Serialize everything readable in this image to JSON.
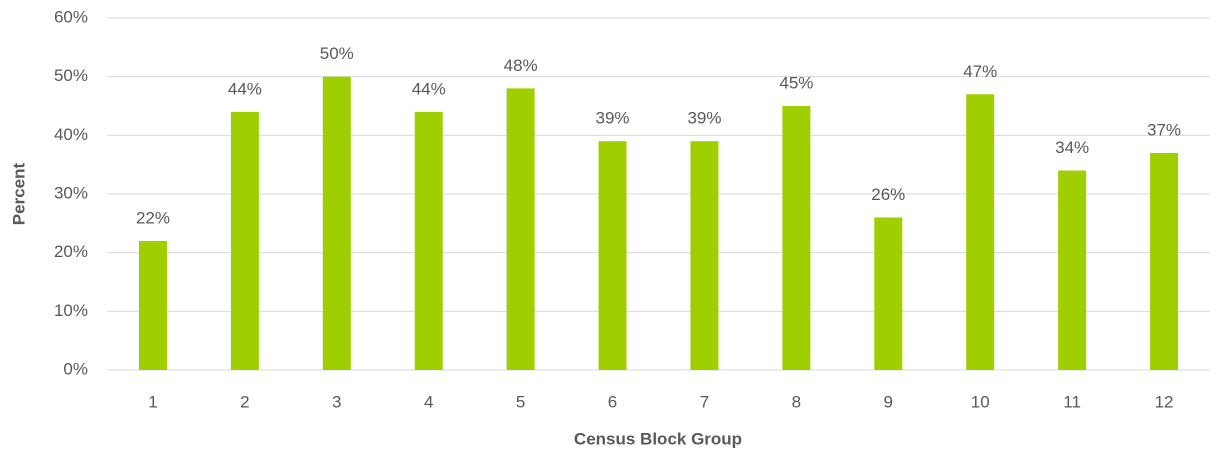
{
  "chart_data": {
    "type": "bar",
    "x_label": "Census Block Group",
    "y_label": "Percent",
    "categories": [
      "1",
      "2",
      "3",
      "4",
      "5",
      "6",
      "7",
      "8",
      "9",
      "10",
      "11",
      "12"
    ],
    "values": [
      22,
      44,
      50,
      44,
      48,
      39,
      39,
      45,
      26,
      47,
      34,
      37
    ],
    "value_labels": [
      "22%",
      "44%",
      "50%",
      "44%",
      "48%",
      "39%",
      "39%",
      "45%",
      "26%",
      "47%",
      "34%",
      "37%"
    ],
    "color": "#9fcf00",
    "ylim": [
      0,
      60
    ],
    "yticks": [
      {
        "value": 0,
        "label": "0%"
      },
      {
        "value": 10,
        "label": "10%"
      },
      {
        "value": 20,
        "label": "20%"
      },
      {
        "value": 30,
        "label": "30%"
      },
      {
        "value": 40,
        "label": "40%"
      },
      {
        "value": 50,
        "label": "50%"
      },
      {
        "value": 60,
        "label": "60%"
      }
    ],
    "grid": true
  }
}
